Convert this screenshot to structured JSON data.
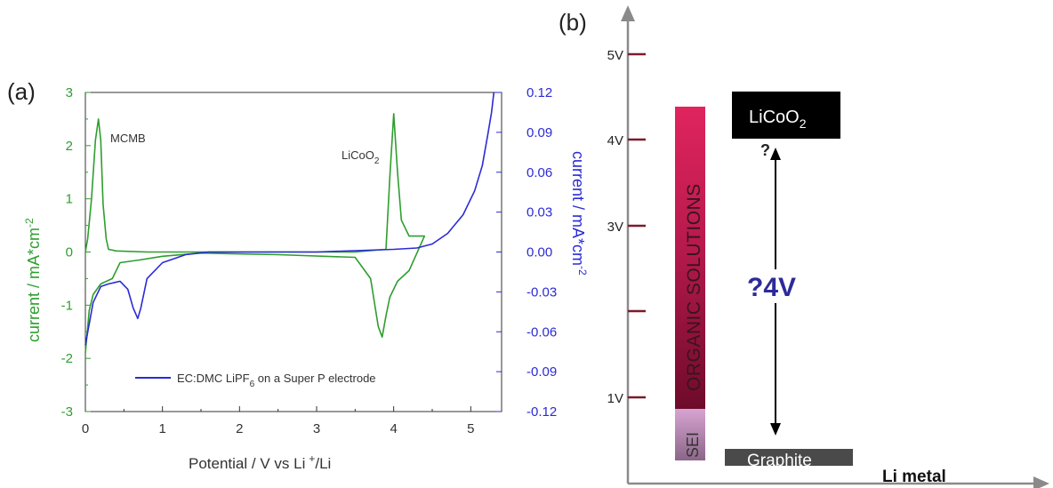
{
  "chart_data": [
    {
      "type": "line",
      "panel": "(a)",
      "xlabel": "Potential / V vs Li⁺/Li",
      "xlabel_main": "Potential / V vs Li",
      "xlabel_sup": "+",
      "xlabel_tail": "/Li",
      "ylabel_left": "current / mA*cm",
      "ylabel_left_sup": "-2",
      "ylabel_right": "current / mA*cm",
      "ylabel_right_sup": "-2",
      "xlim": [
        0,
        5.4
      ],
      "ylim_left": [
        -3,
        3
      ],
      "ylim_right": [
        -0.12,
        0.12
      ],
      "xticks": [
        "0",
        "1",
        "2",
        "3",
        "4",
        "5"
      ],
      "yticks_left": [
        "3",
        "2",
        "1",
        "0",
        "-1",
        "-2",
        "-3"
      ],
      "yticks_right": [
        "0.12",
        "0.09",
        "0.06",
        "0.03",
        "0.00",
        "-0.03",
        "-0.06",
        "-0.09",
        "-0.12"
      ],
      "annotations": {
        "mcmb": "MCMB",
        "licoo2_main": "LiCoO",
        "licoo2_sub": "2"
      },
      "legend": {
        "pre": "EC:DMC LiPF",
        "sub": "6",
        "post": " on a Super P electrode"
      },
      "series": [
        {
          "name": "MCMB",
          "axis": "left",
          "color": "#2e9e2e",
          "x": [
            0.0,
            0.03,
            0.08,
            0.13,
            0.17,
            0.2,
            0.23,
            0.27,
            0.3,
            0.4,
            0.8,
            1.5,
            3.5,
            3.9,
            3.95,
            4.0,
            4.05,
            4.1,
            4.2,
            4.4,
            4.2,
            4.05,
            3.95,
            3.9,
            3.85,
            3.8,
            3.7,
            3.5,
            2.5,
            1.5,
            1.0,
            0.7,
            0.45,
            0.35,
            0.2,
            0.1,
            0.05,
            0.0
          ],
          "y": [
            0.0,
            0.25,
            1.0,
            2.1,
            2.5,
            2.1,
            0.9,
            0.25,
            0.05,
            0.02,
            0.0,
            0.0,
            0.0,
            0.05,
            1.4,
            2.6,
            1.5,
            0.6,
            0.3,
            0.3,
            -0.35,
            -0.55,
            -0.85,
            -1.2,
            -1.6,
            -1.4,
            -0.5,
            -0.1,
            -0.05,
            -0.02,
            -0.08,
            -0.15,
            -0.2,
            -0.5,
            -0.6,
            -0.8,
            -1.1,
            -1.9
          ]
        },
        {
          "name": "EC:DMC LiPF6 on a Super P electrode",
          "axis": "right",
          "color": "#2b2bd6",
          "x": [
            0.0,
            0.1,
            0.2,
            0.3,
            0.45,
            0.55,
            0.62,
            0.68,
            0.72,
            0.8,
            1.0,
            1.3,
            1.6,
            2.0,
            3.0,
            4.0,
            4.3,
            4.5,
            4.7,
            4.9,
            5.05,
            5.15,
            5.22,
            5.27,
            5.3
          ],
          "y": [
            -0.07,
            -0.038,
            -0.026,
            -0.024,
            -0.022,
            -0.028,
            -0.042,
            -0.05,
            -0.042,
            -0.02,
            -0.008,
            -0.002,
            0.0,
            0.0,
            0.0,
            0.002,
            0.003,
            0.006,
            0.014,
            0.028,
            0.046,
            0.065,
            0.088,
            0.105,
            0.12
          ]
        }
      ]
    },
    {
      "type": "diagram",
      "panel": "(b)",
      "yticks": [
        "5V",
        "4V",
        "3V",
        "1V"
      ],
      "x_label": "Li metal",
      "bar_top_label": "ORGANIC SOLUTIONS",
      "bar_bottom_label": "SEI",
      "licoo2_main": "LiCoO",
      "licoo2_sub": "2",
      "question_top": "?",
      "gap_label": "?4V",
      "graphite_label": "Graphite",
      "colors": {
        "bar_top": "#e0245e",
        "bar_bottom": "#6e0b2a",
        "sei": "#c58fbe",
        "arrow_text": "#2b2b99"
      }
    }
  ]
}
